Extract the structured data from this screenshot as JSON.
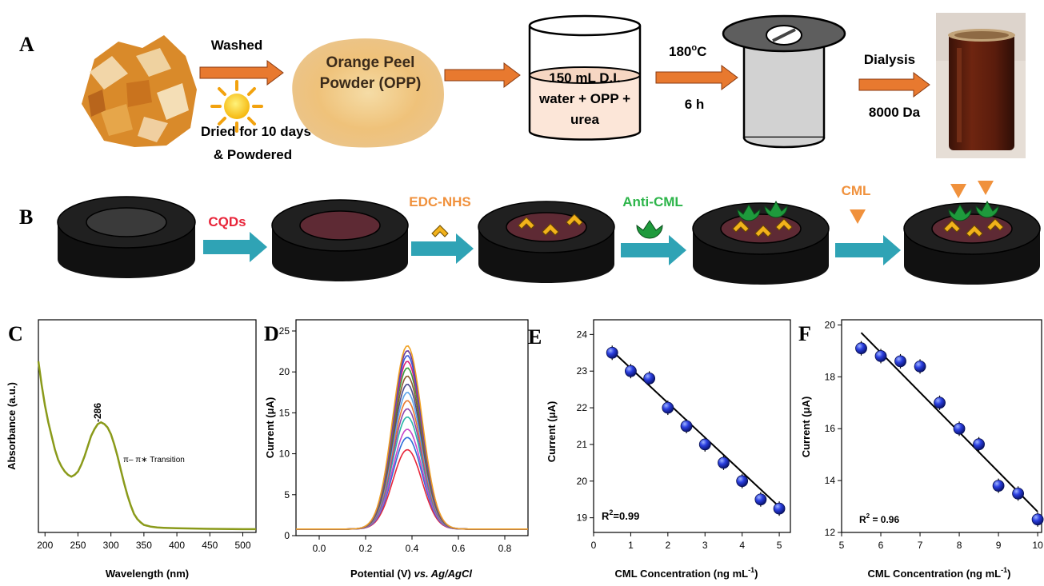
{
  "panel_labels": [
    "A",
    "B",
    "C",
    "D",
    "E",
    "F"
  ],
  "panel_a": {
    "washed": "Washed",
    "dried_line1": "Dried for 10 days",
    "dried_line2": "& Powdered",
    "opp_line1": "Orange Peel",
    "opp_line2": "Powder (OPP)",
    "beaker_line1": "150 mL D.I.",
    "beaker_line2": "water + OPP +",
    "beaker_line3": "urea",
    "temp_value": "180",
    "temp_sup": "o",
    "temp_unit": "C",
    "time": "6 h",
    "dialysis": "Dialysis",
    "da": "8000 Da"
  },
  "panel_b": {
    "cqds": "CQDs",
    "edc": "EDC-NHS",
    "anti": "Anti-CML",
    "cml": "CML"
  },
  "colors": {
    "orange_arrow": "#E8792F",
    "teal_arrow": "#2FA3B5",
    "cqds_red": "#E8253A",
    "edc_orange": "#F0913C",
    "anti_green": "#2DB54A",
    "linker_yellow": "#F2B21B",
    "antibody_green": "#1E9A3C",
    "uv_curve": "#8A9A1A",
    "point_blue": "#1E2FD8"
  },
  "chart_data": [
    {
      "panel": "C",
      "type": "line",
      "xlabel": "Wavelength (nm)",
      "ylabel": "Absorbance (a.u.)",
      "xlim": [
        190,
        520
      ],
      "xticks": [
        200,
        250,
        300,
        350,
        400,
        450,
        500
      ],
      "ylim": [
        0,
        1
      ],
      "yticks_visible": false,
      "peak_label": "-286",
      "annotation": "π– π∗ Transition",
      "series": [
        {
          "x": [
            190,
            195,
            200,
            205,
            210,
            215,
            220,
            225,
            230,
            235,
            240,
            245,
            250,
            255,
            260,
            265,
            270,
            275,
            280,
            285,
            290,
            295,
            300,
            305,
            310,
            315,
            320,
            325,
            330,
            335,
            340,
            345,
            350,
            355,
            360,
            370,
            380,
            400,
            450,
            500,
            520
          ],
          "y": [
            1.0,
            0.86,
            0.74,
            0.64,
            0.56,
            0.48,
            0.42,
            0.38,
            0.35,
            0.33,
            0.32,
            0.33,
            0.35,
            0.39,
            0.44,
            0.5,
            0.56,
            0.6,
            0.63,
            0.64,
            0.63,
            0.61,
            0.57,
            0.51,
            0.44,
            0.36,
            0.28,
            0.21,
            0.15,
            0.1,
            0.07,
            0.05,
            0.035,
            0.03,
            0.025,
            0.02,
            0.018,
            0.015,
            0.012,
            0.01,
            0.01
          ]
        }
      ]
    },
    {
      "panel": "D",
      "type": "line",
      "xlabel_main": "Potential (V) ",
      "xlabel_italic": "vs. Ag/AgCl",
      "ylabel": "Current (μA)",
      "xlim": [
        -0.1,
        0.9
      ],
      "xticks": [
        0.0,
        0.2,
        0.4,
        0.6,
        0.8
      ],
      "ylim": [
        0,
        25
      ],
      "yticks": [
        0,
        5,
        10,
        15,
        20,
        25
      ],
      "peak_potential": 0.38,
      "peak_width": 0.063,
      "baseline": 0.8,
      "series": [
        {
          "color": "#E8253A",
          "peak": 10.5
        },
        {
          "color": "#2E6FD8",
          "peak": 12.0
        },
        {
          "color": "#C846C8",
          "peak": 13.0
        },
        {
          "color": "#2AB5A8",
          "peak": 14.5
        },
        {
          "color": "#8E44AD",
          "peak": 15.5
        },
        {
          "color": "#E8792F",
          "peak": 16.5
        },
        {
          "color": "#5BA4E8",
          "peak": 17.5
        },
        {
          "color": "#4A4A8A",
          "peak": 18.5
        },
        {
          "color": "#8B5A2B",
          "peak": 19.5
        },
        {
          "color": "#3A9A3A",
          "peak": 20.5
        },
        {
          "color": "#D81E7A",
          "peak": 21.3
        },
        {
          "color": "#3A5AD8",
          "peak": 22.0
        },
        {
          "color": "#6A3A9A",
          "peak": 22.6
        },
        {
          "color": "#F0A020",
          "peak": 23.2
        }
      ]
    },
    {
      "panel": "E",
      "type": "scatter",
      "xlabel": "CML Concentration (ng mL",
      "xlabel_sup": "-1",
      "xlabel_end": ")",
      "ylabel": "Current (μA)",
      "xlim": [
        0,
        5.3
      ],
      "xticks": [
        0,
        1,
        2,
        3,
        4,
        5
      ],
      "ylim": [
        18.6,
        24.4
      ],
      "yticks": [
        19,
        20,
        21,
        22,
        23,
        24
      ],
      "r2_label": "R",
      "r2_sup": "2",
      "r2_value": "=0.99",
      "x": [
        0.5,
        1.0,
        1.5,
        2.0,
        2.5,
        3.0,
        3.5,
        4.0,
        4.5,
        5.0
      ],
      "y": [
        23.5,
        23.0,
        22.8,
        22.0,
        21.5,
        21.0,
        20.5,
        20.0,
        19.5,
        19.25
      ],
      "fit": {
        "x": [
          0.5,
          5.0
        ],
        "y": [
          23.55,
          19.3
        ]
      }
    },
    {
      "panel": "F",
      "type": "scatter",
      "xlabel": "CML Concentration (ng mL",
      "xlabel_sup": "-1",
      "xlabel_end": ")",
      "ylabel": "Current (μA)",
      "xlim": [
        5,
        10.1
      ],
      "xticks": [
        5,
        6,
        7,
        8,
        9,
        10
      ],
      "ylim": [
        12,
        20.2
      ],
      "yticks": [
        12,
        14,
        16,
        18,
        20
      ],
      "r2_label": "R",
      "r2_sup": "2",
      "r2_value": " = 0.96",
      "x": [
        5.5,
        6.0,
        6.5,
        7.0,
        7.5,
        8.0,
        8.5,
        9.0,
        9.5,
        10.0
      ],
      "y": [
        19.1,
        18.8,
        18.6,
        18.4,
        17.0,
        16.0,
        15.4,
        13.8,
        13.5,
        12.5
      ],
      "fit": {
        "x": [
          5.5,
          10.0
        ],
        "y": [
          19.7,
          12.8
        ]
      }
    }
  ]
}
